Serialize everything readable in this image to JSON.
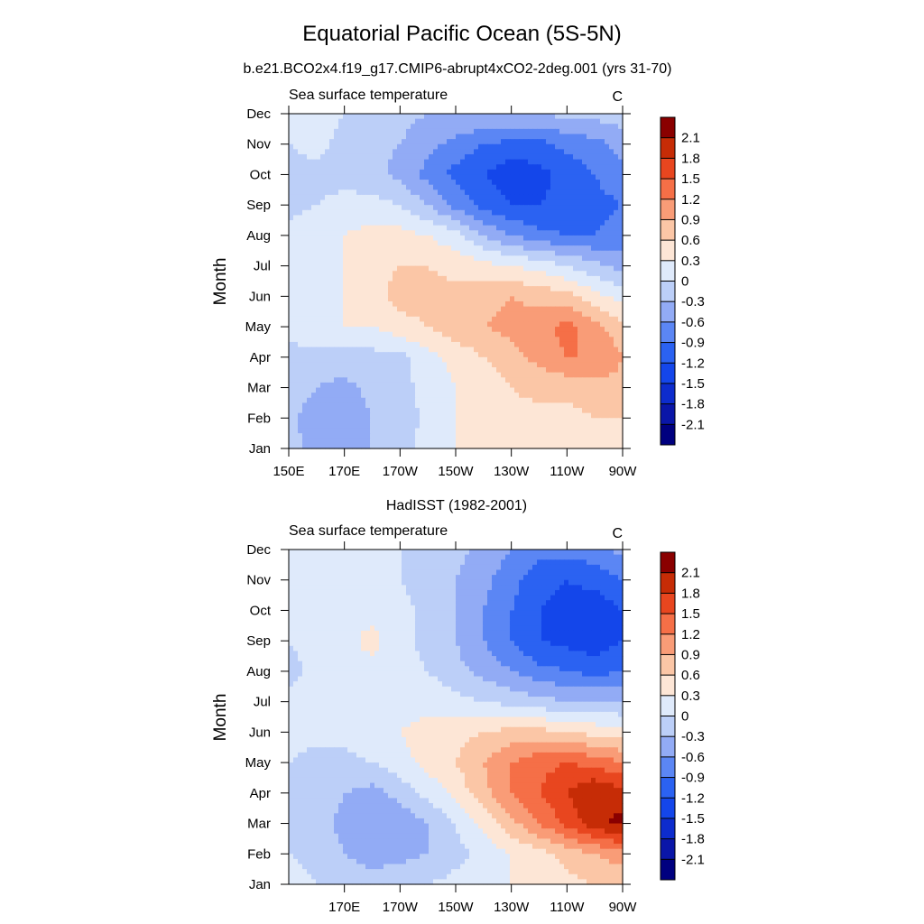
{
  "title": "Equatorial Pacific Ocean (5S-5N)",
  "subtitle": "b.e21.BCO2x4.f19_g17.CMIP6-abrupt4xCO2-2deg.001 (yrs 31-70)",
  "chart_data": [
    {
      "type": "heatmap",
      "panel_title": "",
      "left_label": "Sea surface temperature",
      "units": "C",
      "ylabel": "Month",
      "x_tick_labels": [
        "150E",
        "170E",
        "170W",
        "150W",
        "130W",
        "110W",
        "90W"
      ],
      "x_ticks_lon": [
        150,
        170,
        190,
        210,
        230,
        250,
        270
      ],
      "xlim": [
        150,
        270
      ],
      "y_tick_labels": [
        "Jan",
        "Feb",
        "Mar",
        "Apr",
        "May",
        "Jun",
        "Jul",
        "Aug",
        "Sep",
        "Oct",
        "Nov",
        "Dec"
      ],
      "ylim": [
        1,
        12
      ],
      "x": [
        150,
        160,
        170,
        180,
        190,
        200,
        210,
        220,
        230,
        240,
        250,
        260,
        270
      ],
      "months": [
        1,
        2,
        3,
        4,
        5,
        6,
        7,
        8,
        9,
        10,
        11,
        12
      ],
      "z": [
        [
          -0.2,
          -0.4,
          -0.5,
          -0.3,
          -0.1,
          0.1,
          0.3,
          0.4,
          0.4,
          0.3,
          0.3,
          0.4,
          0.4
        ],
        [
          -0.2,
          -0.5,
          -0.5,
          -0.3,
          -0.2,
          0.1,
          0.3,
          0.4,
          0.5,
          0.5,
          0.5,
          0.6,
          0.6
        ],
        [
          -0.1,
          -0.3,
          -0.4,
          -0.2,
          -0.1,
          0.1,
          0.3,
          0.4,
          0.6,
          0.7,
          0.7,
          0.8,
          0.8
        ],
        [
          -0.1,
          -0.1,
          -0.1,
          -0.1,
          -0.1,
          0.2,
          0.4,
          0.6,
          0.8,
          1.0,
          1.2,
          1.2,
          0.9
        ],
        [
          0.1,
          0.2,
          0.3,
          0.3,
          0.5,
          0.6,
          0.8,
          0.9,
          1.0,
          1.1,
          1.3,
          1.0,
          0.7
        ],
        [
          0.1,
          0.2,
          0.3,
          0.5,
          0.7,
          0.7,
          0.7,
          0.8,
          0.9,
          0.8,
          0.7,
          0.4,
          0.2
        ],
        [
          0.1,
          0.2,
          0.3,
          0.5,
          0.6,
          0.6,
          0.5,
          0.4,
          0.3,
          0.2,
          0.0,
          -0.2,
          -0.4
        ],
        [
          0.1,
          0.2,
          0.3,
          0.4,
          0.4,
          0.3,
          0.1,
          -0.3,
          -0.6,
          -0.8,
          -0.9,
          -0.9,
          -0.8
        ],
        [
          -0.1,
          0.0,
          0.1,
          0.1,
          0.0,
          -0.3,
          -0.7,
          -1.0,
          -1.2,
          -1.2,
          -1.1,
          -1.0,
          -0.9
        ],
        [
          -0.1,
          -0.1,
          -0.1,
          -0.2,
          -0.4,
          -0.7,
          -1.0,
          -1.2,
          -1.4,
          -1.3,
          -1.1,
          -0.9,
          -0.7
        ],
        [
          0.0,
          0.1,
          -0.1,
          -0.2,
          -0.3,
          -0.5,
          -0.7,
          -0.9,
          -1.0,
          -1.0,
          -0.8,
          -0.7,
          -0.5
        ],
        [
          0.0,
          0.1,
          0.0,
          -0.1,
          -0.2,
          -0.3,
          -0.3,
          -0.3,
          -0.3,
          -0.3,
          -0.2,
          -0.2,
          -0.1
        ]
      ]
    },
    {
      "type": "heatmap",
      "panel_title": "HadISST (1982-2001)",
      "left_label": "Sea surface temperature",
      "units": "C",
      "ylabel": "Month",
      "x_tick_labels": [
        "170E",
        "170W",
        "150W",
        "130W",
        "110W",
        "90W"
      ],
      "x_ticks_lon": [
        170,
        190,
        210,
        230,
        250,
        270
      ],
      "xlim": [
        150,
        270
      ],
      "y_tick_labels": [
        "Jan",
        "Feb",
        "Mar",
        "Apr",
        "May",
        "Jun",
        "Jul",
        "Aug",
        "Sep",
        "Oct",
        "Nov",
        "Dec"
      ],
      "ylim": [
        1,
        12
      ],
      "x": [
        150,
        160,
        170,
        180,
        190,
        200,
        210,
        220,
        230,
        240,
        250,
        260,
        270
      ],
      "months": [
        1,
        2,
        3,
        4,
        5,
        6,
        7,
        8,
        9,
        10,
        11,
        12
      ],
      "z": [
        [
          0.1,
          0.0,
          -0.1,
          -0.2,
          -0.1,
          0.0,
          0.1,
          0.2,
          0.3,
          0.4,
          0.5,
          0.6,
          0.6
        ],
        [
          0.0,
          -0.1,
          -0.3,
          -0.4,
          -0.4,
          -0.3,
          -0.1,
          0.1,
          0.3,
          0.5,
          0.7,
          0.9,
          1.1
        ],
        [
          -0.1,
          -0.2,
          -0.4,
          -0.5,
          -0.5,
          -0.3,
          0.0,
          0.4,
          0.8,
          1.2,
          1.6,
          2.0,
          2.2
        ],
        [
          -0.1,
          -0.1,
          -0.3,
          -0.4,
          -0.2,
          0.1,
          0.4,
          0.8,
          1.2,
          1.5,
          1.8,
          2.1,
          1.9
        ],
        [
          0.0,
          -0.1,
          -0.1,
          0.0,
          0.2,
          0.4,
          0.6,
          0.9,
          1.2,
          1.4,
          1.5,
          1.4,
          1.2
        ],
        [
          0.1,
          0.1,
          0.1,
          0.2,
          0.3,
          0.4,
          0.5,
          0.6,
          0.7,
          0.7,
          0.6,
          0.5,
          0.4
        ],
        [
          0.1,
          0.1,
          0.2,
          0.2,
          0.2,
          0.2,
          0.1,
          0.0,
          -0.1,
          -0.2,
          -0.3,
          -0.3,
          -0.3
        ],
        [
          -0.1,
          0.1,
          0.2,
          0.2,
          0.1,
          0.0,
          -0.2,
          -0.4,
          -0.6,
          -0.8,
          -0.9,
          -1.0,
          -0.9
        ],
        [
          0.0,
          0.1,
          0.2,
          0.4,
          0.1,
          -0.1,
          -0.3,
          -0.6,
          -0.9,
          -1.2,
          -1.3,
          -1.4,
          -1.2
        ],
        [
          0.0,
          0.1,
          0.2,
          0.2,
          0.1,
          -0.1,
          -0.3,
          -0.6,
          -0.9,
          -1.2,
          -1.3,
          -1.4,
          -1.2
        ],
        [
          0.1,
          0.1,
          0.1,
          0.1,
          0.0,
          -0.1,
          -0.3,
          -0.5,
          -0.8,
          -1.1,
          -1.2,
          -1.1,
          -0.9
        ],
        [
          0.1,
          0.1,
          0.1,
          0.0,
          0.0,
          -0.1,
          -0.2,
          -0.4,
          -0.6,
          -0.8,
          -0.8,
          -0.7,
          -0.5
        ]
      ]
    }
  ],
  "colorbar": {
    "levels": [
      -2.1,
      -1.8,
      -1.5,
      -1.2,
      -0.9,
      -0.6,
      -0.3,
      0,
      0.3,
      0.6,
      0.9,
      1.2,
      1.5,
      1.8,
      2.1
    ],
    "labels": [
      "-2.1",
      "-1.8",
      "-1.5",
      "-1.2",
      "-0.9",
      "-0.6",
      "-0.3",
      "0",
      "0.3",
      "0.6",
      "0.9",
      "1.2",
      "1.5",
      "1.8",
      "2.1"
    ],
    "colors": [
      "#00007f",
      "#0a16a8",
      "#0d2ccd",
      "#1446ea",
      "#2b62f2",
      "#5b86f4",
      "#92abf5",
      "#bccff8",
      "#dfeafb",
      "#fde6d6",
      "#fbc6a6",
      "#f99c77",
      "#f56f47",
      "#e8461f",
      "#c62c06",
      "#8a0000"
    ]
  }
}
